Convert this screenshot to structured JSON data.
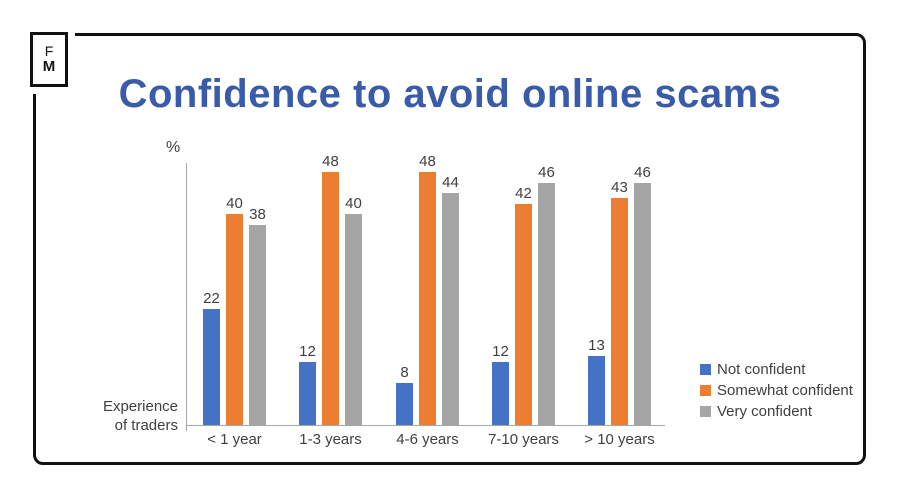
{
  "logo": {
    "line1": "F",
    "line2": "M"
  },
  "title": "Confidence to avoid online scams",
  "labels": {
    "percent": "%",
    "xlabel_line1": "Experience",
    "xlabel_line2": "of traders"
  },
  "chart_data": {
    "type": "bar",
    "title": "Confidence to avoid online scams",
    "categories": [
      "< 1 year",
      "1-3 years",
      "4-6 years",
      "7-10 years",
      "> 10 years"
    ],
    "series": [
      {
        "name": "Not confident",
        "color": "#4472C4",
        "values": [
          22,
          12,
          8,
          12,
          13
        ]
      },
      {
        "name": "Somewhat confident",
        "color": "#ED7D31",
        "values": [
          40,
          48,
          48,
          42,
          43
        ]
      },
      {
        "name": "Very confident",
        "color": "#A5A5A5",
        "values": [
          38,
          40,
          44,
          46,
          46
        ]
      }
    ],
    "ylabel": "%",
    "xlabel": "Experience of traders",
    "ylim": [
      0,
      50
    ],
    "grid": false,
    "data_labels": true,
    "legend_position": "right"
  },
  "colors": {
    "title": "#3A5BA9",
    "axis": "#A6A6A6",
    "text": "#404040",
    "frame": "#111111"
  }
}
